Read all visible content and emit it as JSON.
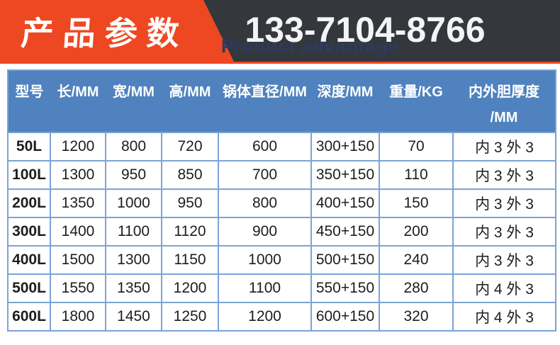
{
  "banner": {
    "title": "产品参数",
    "phone": "133-7104-8766",
    "watermark": "Product advantage",
    "colors": {
      "orange": "#ee4823",
      "dark": "#34373c",
      "watermark_text": "#2e3a62"
    }
  },
  "table": {
    "header_bg": "#4f82be",
    "border_color": "#7ba3d6",
    "headers": [
      "型号",
      "长/MM",
      "宽/MM",
      "高/MM",
      "锅体直径/MM",
      "深度/MM",
      "重量/KG",
      "内外胆厚度"
    ],
    "last_header_line2": "/MM",
    "rows": [
      [
        "50L",
        "1200",
        "800",
        "720",
        "600",
        "300+150",
        "70",
        "内 3 外 3"
      ],
      [
        "100L",
        "1300",
        "950",
        "850",
        "700",
        "350+150",
        "110",
        "内 3 外 3"
      ],
      [
        "200L",
        "1350",
        "1000",
        "950",
        "800",
        "400+150",
        "150",
        "内 3 外 3"
      ],
      [
        "300L",
        "1400",
        "1100",
        "1120",
        "900",
        "450+150",
        "200",
        "内 3 外 3"
      ],
      [
        "400L",
        "1500",
        "1300",
        "1150",
        "1000",
        "500+150",
        "240",
        "内 3 外 3"
      ],
      [
        "500L",
        "1550",
        "1350",
        "1200",
        "1100",
        "550+150",
        "280",
        "内 4 外 3"
      ],
      [
        "600L",
        "1800",
        "1450",
        "1250",
        "1200",
        "600+150",
        "320",
        "内 4 外 3"
      ]
    ]
  }
}
